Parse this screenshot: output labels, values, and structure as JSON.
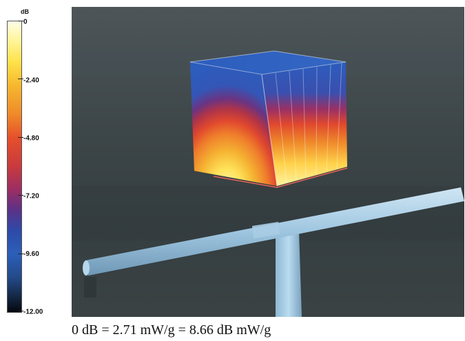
{
  "colorbar": {
    "unit": "dB",
    "ticks": [
      "0",
      "-2.40",
      "-4.80",
      "-7.20",
      "-9.60",
      "-12.00"
    ]
  },
  "colors": {
    "background": "#3d4648",
    "probe_post": "#9fc6e0",
    "outline": "#e8635a"
  },
  "caption": "0 dB = 2.71 mW/g = 8.66 dB mW/g"
}
